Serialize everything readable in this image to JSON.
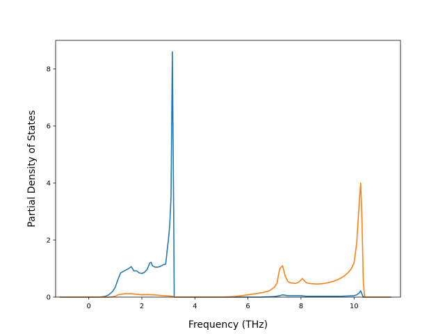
{
  "chart_data": {
    "type": "line",
    "title": "",
    "xlabel": "Frequency (THz)",
    "ylabel": "Partial Density of States",
    "xlim": [
      -1.25,
      11.75
    ],
    "ylim": [
      0,
      9.0
    ],
    "xticks": [
      0,
      2,
      4,
      6,
      8,
      10
    ],
    "yticks": [
      0,
      2,
      4,
      6,
      8
    ],
    "xtick_labels": [
      "0",
      "2",
      "4",
      "6",
      "8",
      "10"
    ],
    "ytick_labels": [
      "0",
      "2",
      "4",
      "6",
      "8"
    ],
    "grid": false,
    "legend": "none",
    "series": [
      {
        "color": "#1f77b4",
        "points": [
          [
            -1.1,
            0.0
          ],
          [
            0.0,
            0.0
          ],
          [
            0.4,
            0.0
          ],
          [
            0.6,
            0.02
          ],
          [
            0.75,
            0.08
          ],
          [
            0.9,
            0.2
          ],
          [
            1.0,
            0.35
          ],
          [
            1.1,
            0.62
          ],
          [
            1.2,
            0.85
          ],
          [
            1.3,
            0.9
          ],
          [
            1.4,
            0.95
          ],
          [
            1.5,
            1.0
          ],
          [
            1.6,
            1.07
          ],
          [
            1.7,
            0.92
          ],
          [
            1.8,
            0.92
          ],
          [
            1.9,
            0.85
          ],
          [
            2.0,
            0.83
          ],
          [
            2.1,
            0.87
          ],
          [
            2.2,
            0.97
          ],
          [
            2.3,
            1.2
          ],
          [
            2.35,
            1.22
          ],
          [
            2.4,
            1.1
          ],
          [
            2.5,
            1.05
          ],
          [
            2.6,
            1.05
          ],
          [
            2.7,
            1.08
          ],
          [
            2.8,
            1.13
          ],
          [
            2.9,
            1.16
          ],
          [
            2.95,
            1.6
          ],
          [
            3.0,
            2.0
          ],
          [
            3.05,
            2.5
          ],
          [
            3.1,
            3.5
          ],
          [
            3.15,
            8.6
          ],
          [
            3.2,
            3.0
          ],
          [
            3.22,
            0.0
          ],
          [
            3.4,
            0.0
          ],
          [
            6.0,
            0.0
          ],
          [
            6.5,
            0.0
          ],
          [
            7.0,
            0.02
          ],
          [
            7.2,
            0.05
          ],
          [
            7.3,
            0.08
          ],
          [
            7.5,
            0.05
          ],
          [
            8.0,
            0.05
          ],
          [
            8.2,
            0.03
          ],
          [
            9.0,
            0.03
          ],
          [
            9.5,
            0.03
          ],
          [
            10.0,
            0.05
          ],
          [
            10.1,
            0.08
          ],
          [
            10.2,
            0.15
          ],
          [
            10.25,
            0.22
          ],
          [
            10.3,
            0.1
          ],
          [
            10.35,
            0.0
          ],
          [
            11.0,
            0.0
          ],
          [
            11.4,
            0.0
          ]
        ]
      },
      {
        "color": "#ff7f0e",
        "points": [
          [
            -1.1,
            0.0
          ],
          [
            0.0,
            0.0
          ],
          [
            0.8,
            0.0
          ],
          [
            1.0,
            0.03
          ],
          [
            1.1,
            0.08
          ],
          [
            1.2,
            0.1
          ],
          [
            1.4,
            0.12
          ],
          [
            1.6,
            0.12
          ],
          [
            1.8,
            0.1
          ],
          [
            2.0,
            0.08
          ],
          [
            2.2,
            0.09
          ],
          [
            2.4,
            0.08
          ],
          [
            2.6,
            0.07
          ],
          [
            2.8,
            0.05
          ],
          [
            3.0,
            0.04
          ],
          [
            3.15,
            0.03
          ],
          [
            3.25,
            0.0
          ],
          [
            4.0,
            0.0
          ],
          [
            5.0,
            0.0
          ],
          [
            5.5,
            0.02
          ],
          [
            6.0,
            0.08
          ],
          [
            6.5,
            0.15
          ],
          [
            6.8,
            0.22
          ],
          [
            7.0,
            0.35
          ],
          [
            7.1,
            0.5
          ],
          [
            7.15,
            0.78
          ],
          [
            7.2,
            1.0
          ],
          [
            7.3,
            1.1
          ],
          [
            7.35,
            0.95
          ],
          [
            7.4,
            0.75
          ],
          [
            7.5,
            0.55
          ],
          [
            7.6,
            0.5
          ],
          [
            7.8,
            0.48
          ],
          [
            7.9,
            0.52
          ],
          [
            8.0,
            0.6
          ],
          [
            8.05,
            0.65
          ],
          [
            8.1,
            0.6
          ],
          [
            8.2,
            0.5
          ],
          [
            8.4,
            0.47
          ],
          [
            8.6,
            0.46
          ],
          [
            8.8,
            0.47
          ],
          [
            9.0,
            0.5
          ],
          [
            9.2,
            0.55
          ],
          [
            9.4,
            0.62
          ],
          [
            9.6,
            0.72
          ],
          [
            9.8,
            0.88
          ],
          [
            9.9,
            1.0
          ],
          [
            10.0,
            1.2
          ],
          [
            10.1,
            1.9
          ],
          [
            10.2,
            3.4
          ],
          [
            10.25,
            4.0
          ],
          [
            10.3,
            2.6
          ],
          [
            10.35,
            0.5
          ],
          [
            10.4,
            0.0
          ],
          [
            11.0,
            0.0
          ],
          [
            11.4,
            0.0
          ]
        ]
      }
    ]
  }
}
